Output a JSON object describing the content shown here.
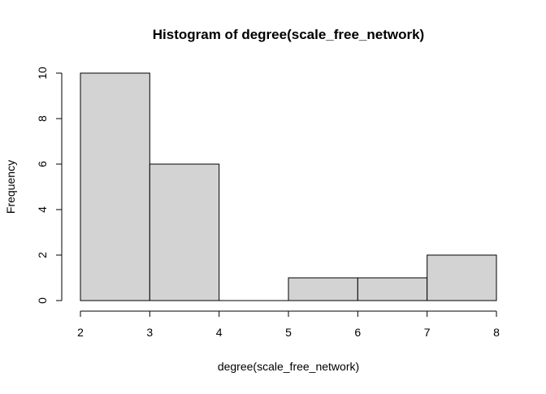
{
  "chart_data": {
    "type": "bar",
    "subtype": "histogram",
    "title": "Histogram of degree(scale_free_network)",
    "xlabel": "degree(scale_free_network)",
    "ylabel": "Frequency",
    "bins": [
      {
        "x0": 2,
        "x1": 3,
        "count": 10
      },
      {
        "x0": 3,
        "x1": 4,
        "count": 6
      },
      {
        "x0": 4,
        "x1": 5,
        "count": 0
      },
      {
        "x0": 5,
        "x1": 6,
        "count": 1
      },
      {
        "x0": 6,
        "x1": 7,
        "count": 1
      },
      {
        "x0": 7,
        "x1": 8,
        "count": 2
      }
    ],
    "xlim": [
      2,
      8
    ],
    "ylim": [
      0,
      10
    ],
    "x_ticks": [
      "2",
      "3",
      "4",
      "5",
      "6",
      "7",
      "8"
    ],
    "y_ticks": [
      "0",
      "2",
      "4",
      "6",
      "8",
      "10"
    ],
    "grid": false,
    "legend": "none",
    "colors": {
      "bar_fill": "#d3d3d3",
      "bar_stroke": "#000000",
      "axis": "#000000",
      "background": "#ffffff"
    }
  }
}
